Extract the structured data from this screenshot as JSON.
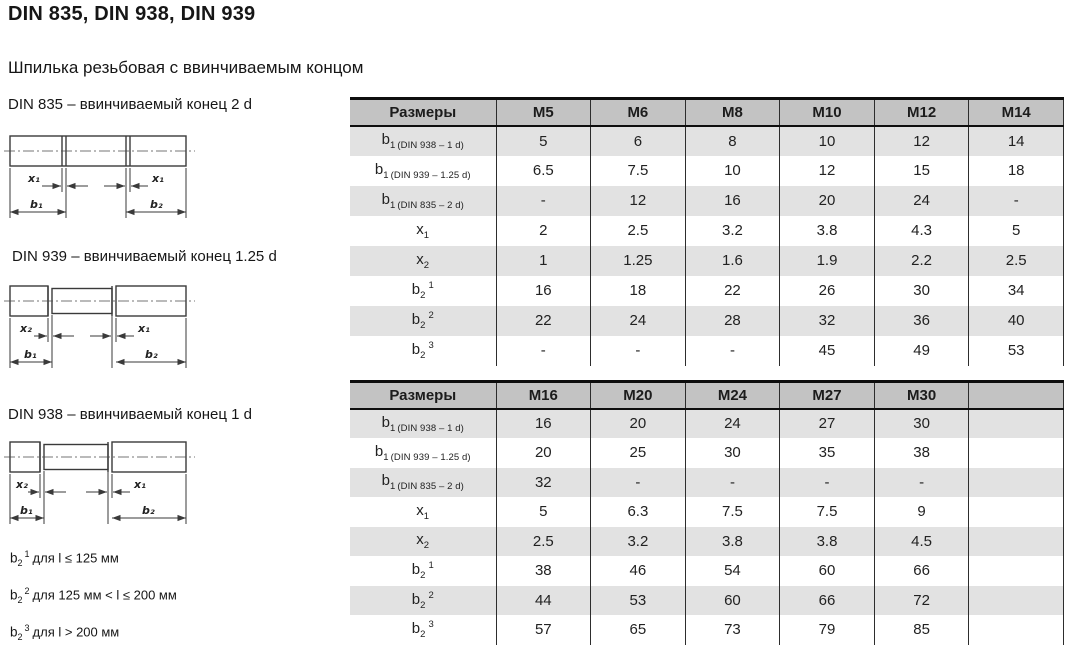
{
  "page": {
    "title": "DIN 835, DIN 938, DIN 939",
    "subtitle": "Шпилька резьбовая с ввинчиваемым концом"
  },
  "diagrams": [
    {
      "label": "DIN 835 – ввинчиваемый конец 2 d",
      "dim_left_x": "x₁",
      "dim_right_x": "x₁",
      "dim_left_b": "b₁",
      "dim_right_b": "b₂"
    },
    {
      "label": "DIN 939 – ввинчиваемый конец 1.25 d",
      "dim_left_x": "x₂",
      "dim_right_x": "x₁",
      "dim_left_b": "b₁",
      "dim_right_b": "b₂"
    },
    {
      "label": "DIN 938 – ввинчиваемый конец 1 d",
      "dim_left_x": "x₂",
      "dim_right_x": "x₁",
      "dim_left_b": "b₁",
      "dim_right_b": "b₂"
    }
  ],
  "footnotes": [
    {
      "base": "b",
      "sub": "2",
      "sup": "1",
      "text": "для l ≤ 125 мм"
    },
    {
      "base": "b",
      "sub": "2",
      "sup": "2",
      "text": "для 125 мм < l ≤ 200 мм"
    },
    {
      "base": "b",
      "sub": "2",
      "sup": "3",
      "text": "для l > 200 мм"
    }
  ],
  "tables": [
    {
      "header": [
        "Размеры",
        "M5",
        "M6",
        "M8",
        "M10",
        "M12",
        "M14"
      ],
      "rows": [
        {
          "label": {
            "base": "b",
            "sub": "1",
            "note": "(DIN 938 – 1 d)"
          },
          "values": [
            "5",
            "6",
            "8",
            "10",
            "12",
            "14"
          ]
        },
        {
          "label": {
            "base": "b",
            "sub": "1",
            "note": "(DIN 939 – 1.25 d)"
          },
          "values": [
            "6.5",
            "7.5",
            "10",
            "12",
            "15",
            "18"
          ]
        },
        {
          "label": {
            "base": "b",
            "sub": "1",
            "note": "(DIN 835 – 2 d)"
          },
          "values": [
            "-",
            "12",
            "16",
            "20",
            "24",
            "-"
          ]
        },
        {
          "label": {
            "base": "x",
            "sub": "1"
          },
          "values": [
            "2",
            "2.5",
            "3.2",
            "3.8",
            "4.3",
            "5"
          ]
        },
        {
          "label": {
            "base": "x",
            "sub": "2"
          },
          "values": [
            "1",
            "1.25",
            "1.6",
            "1.9",
            "2.2",
            "2.5"
          ]
        },
        {
          "label": {
            "base": "b",
            "sub": "2",
            "sup": "1"
          },
          "values": [
            "16",
            "18",
            "22",
            "26",
            "30",
            "34"
          ]
        },
        {
          "label": {
            "base": "b",
            "sub": "2",
            "sup": "2"
          },
          "values": [
            "22",
            "24",
            "28",
            "32",
            "36",
            "40"
          ]
        },
        {
          "label": {
            "base": "b",
            "sub": "2",
            "sup": "3"
          },
          "values": [
            "-",
            "-",
            "-",
            "45",
            "49",
            "53"
          ]
        }
      ]
    },
    {
      "header": [
        "Размеры",
        "M16",
        "M20",
        "M24",
        "M27",
        "M30",
        ""
      ],
      "rows": [
        {
          "label": {
            "base": "b",
            "sub": "1",
            "note": "(DIN 938 – 1 d)"
          },
          "values": [
            "16",
            "20",
            "24",
            "27",
            "30",
            ""
          ]
        },
        {
          "label": {
            "base": "b",
            "sub": "1",
            "note": "(DIN 939 – 1.25 d)"
          },
          "values": [
            "20",
            "25",
            "30",
            "35",
            "38",
            ""
          ]
        },
        {
          "label": {
            "base": "b",
            "sub": "1",
            "note": "(DIN 835 – 2 d)"
          },
          "values": [
            "32",
            "-",
            "-",
            "-",
            "-",
            ""
          ]
        },
        {
          "label": {
            "base": "x",
            "sub": "1"
          },
          "values": [
            "5",
            "6.3",
            "7.5",
            "7.5",
            "9",
            ""
          ]
        },
        {
          "label": {
            "base": "x",
            "sub": "2"
          },
          "values": [
            "2.5",
            "3.2",
            "3.8",
            "3.8",
            "4.5",
            ""
          ]
        },
        {
          "label": {
            "base": "b",
            "sub": "2",
            "sup": "1"
          },
          "values": [
            "38",
            "46",
            "54",
            "60",
            "66",
            ""
          ]
        },
        {
          "label": {
            "base": "b",
            "sub": "2",
            "sup": "2"
          },
          "values": [
            "44",
            "53",
            "60",
            "66",
            "72",
            ""
          ]
        },
        {
          "label": {
            "base": "b",
            "sub": "2",
            "sup": "3"
          },
          "values": [
            "57",
            "65",
            "73",
            "79",
            "85",
            ""
          ]
        }
      ]
    }
  ],
  "colors": {
    "header_bg": "#c3c3c3",
    "stripe_bg": "#e2e2e2",
    "row_bg": "#ffffff",
    "border": "#2d2d2d",
    "text": "#1f1f1f"
  }
}
